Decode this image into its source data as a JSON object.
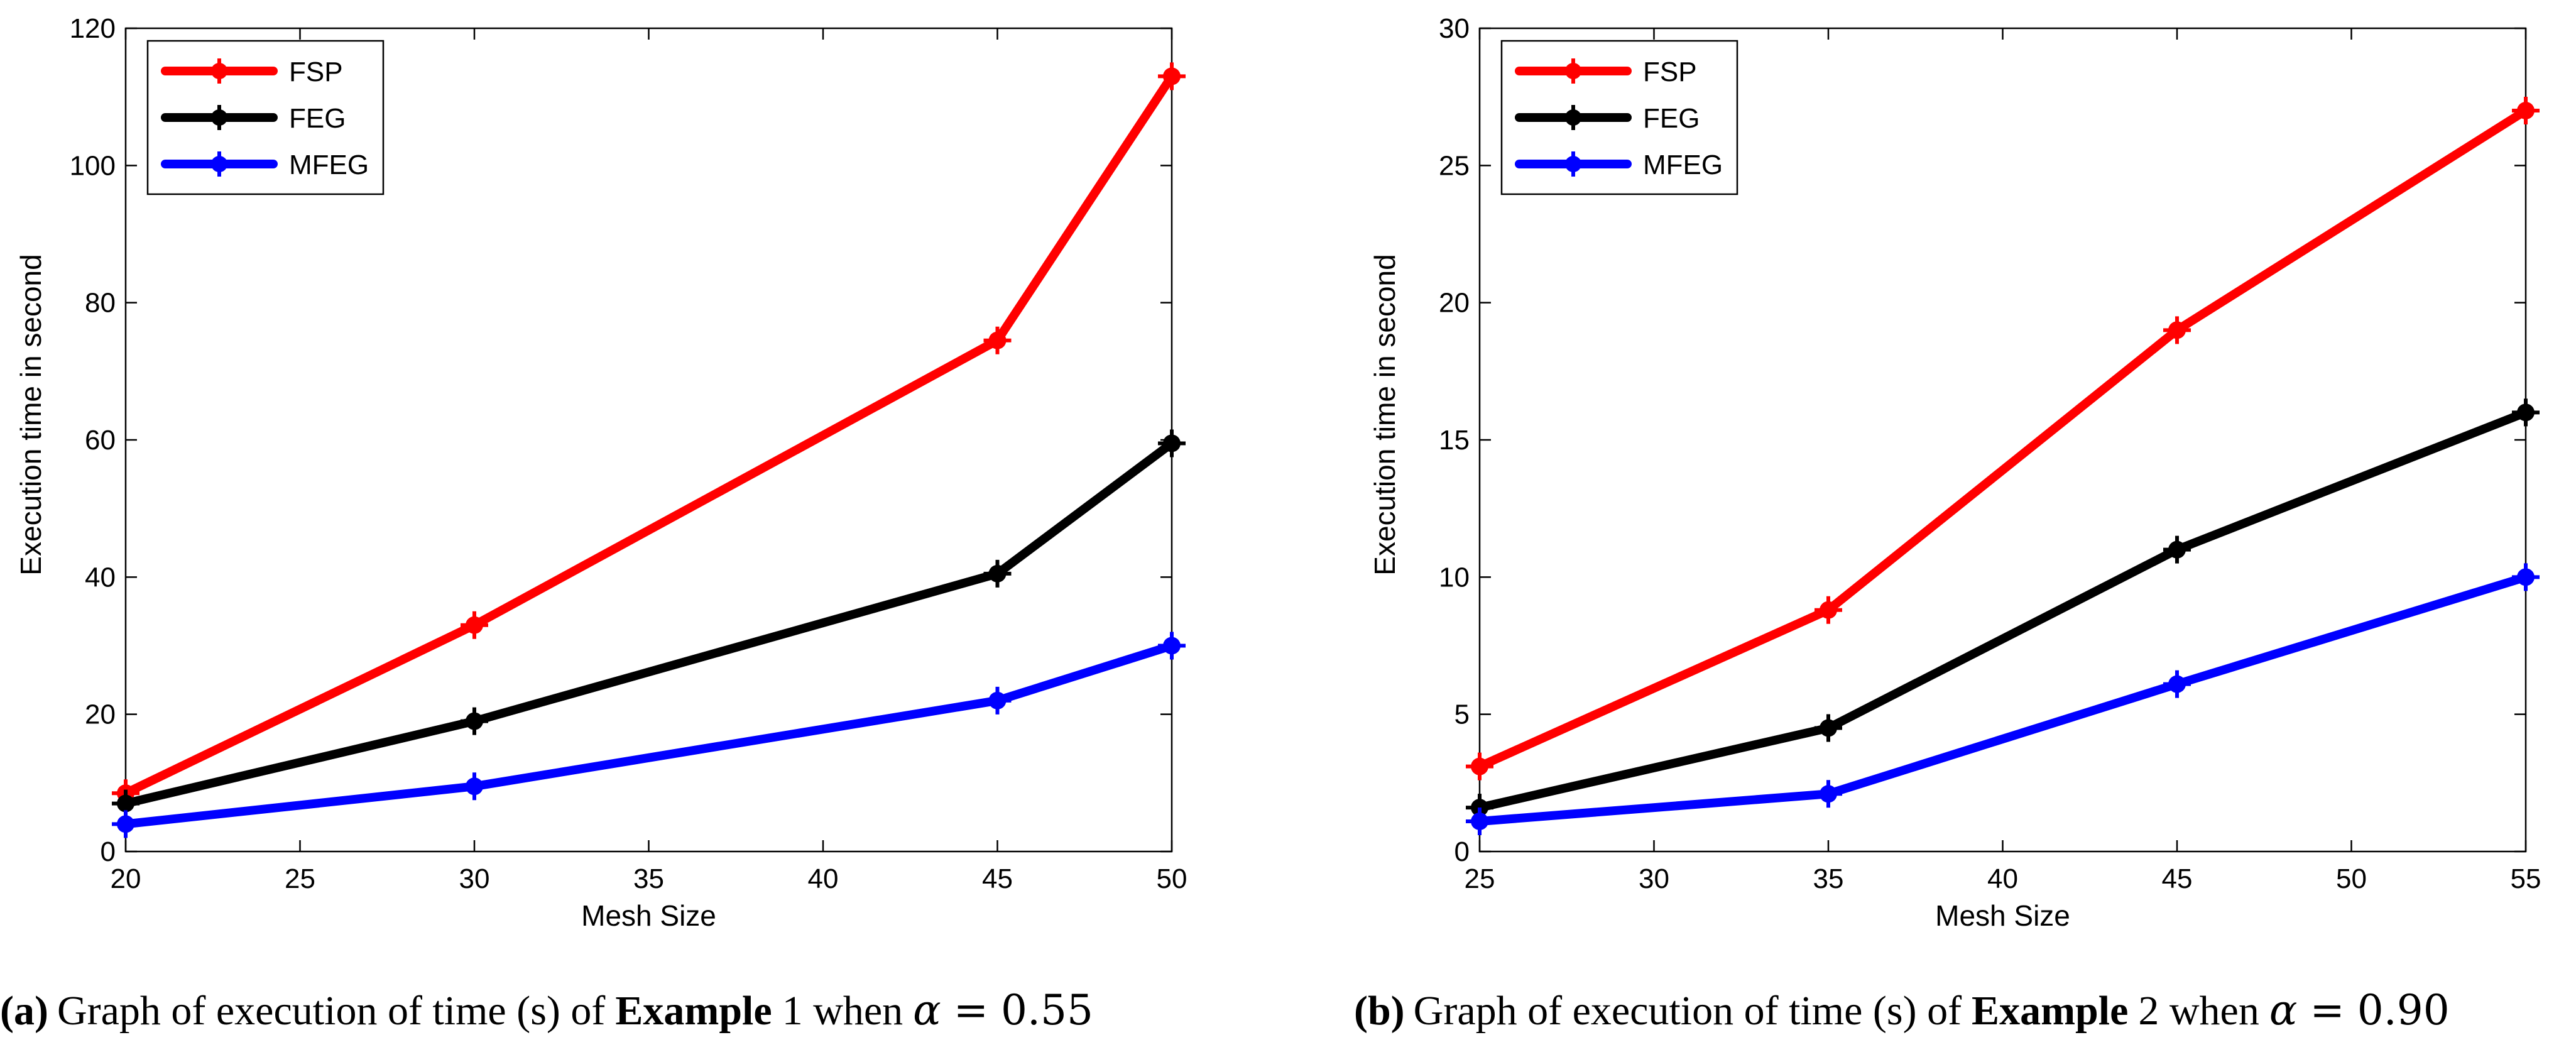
{
  "colors": {
    "FSP": "#ff0000",
    "FEG": "#000000",
    "MFEG": "#0000ff"
  },
  "chart_data": [
    {
      "type": "line",
      "panel": "a",
      "caption": {
        "label": "(a)",
        "pre": "Graph of execution of time (s) of",
        "bold": "Example",
        "mid": "1 when",
        "symbol": "α",
        "eq": "=",
        "value": "0.55"
      },
      "xlabel": "Mesh Size",
      "ylabel": "Execution time in second",
      "xlim": [
        20,
        50
      ],
      "ylim": [
        0,
        120
      ],
      "xticks": [
        "20",
        "25",
        "30",
        "35",
        "40",
        "45",
        "50"
      ],
      "yticks": [
        "0",
        "20",
        "40",
        "60",
        "80",
        "100",
        "120"
      ],
      "x": [
        20,
        30,
        45,
        50
      ],
      "series": [
        {
          "name": "FSP",
          "values": [
            8.5,
            33,
            74.5,
            113
          ]
        },
        {
          "name": "FEG",
          "values": [
            7,
            19,
            40.5,
            59.5
          ]
        },
        {
          "name": "MFEG",
          "values": [
            4,
            9.5,
            22,
            30
          ]
        }
      ],
      "legend": "top-left",
      "grid": false
    },
    {
      "type": "line",
      "panel": "b",
      "caption": {
        "label": "(b)",
        "pre": "Graph of execution of time (s) of",
        "bold": "Example",
        "mid": "2 when",
        "symbol": "α",
        "eq": "=",
        "value": "0.90"
      },
      "xlabel": "Mesh Size",
      "ylabel": "Execution time in second",
      "xlim": [
        25,
        55
      ],
      "ylim": [
        0,
        30
      ],
      "xticks": [
        "25",
        "30",
        "35",
        "40",
        "45",
        "50",
        "55"
      ],
      "yticks": [
        "0",
        "5",
        "10",
        "15",
        "20",
        "25",
        "30"
      ],
      "x": [
        25,
        35,
        45,
        55
      ],
      "series": [
        {
          "name": "FSP",
          "values": [
            3.1,
            8.8,
            19,
            27
          ]
        },
        {
          "name": "FEG",
          "values": [
            1.6,
            4.5,
            11,
            16
          ]
        },
        {
          "name": "MFEG",
          "values": [
            1.1,
            2.1,
            6.1,
            10
          ]
        }
      ],
      "legend": "top-left",
      "grid": false
    }
  ]
}
